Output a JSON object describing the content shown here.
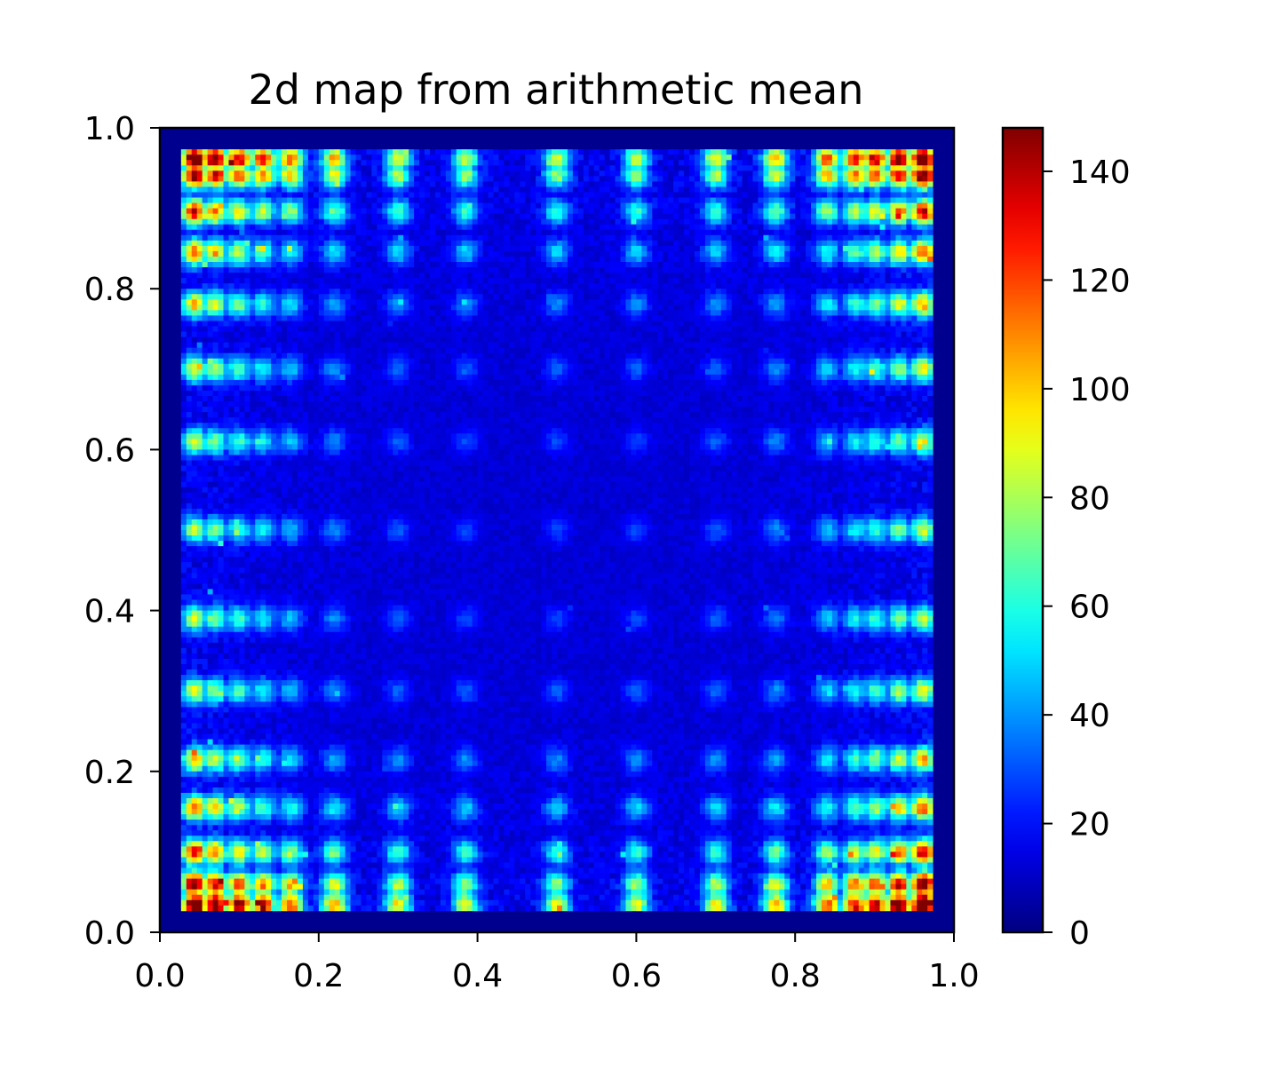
{
  "chart_data": {
    "type": "heatmap",
    "title": "2d map from arithmetic mean",
    "xlabel": "",
    "ylabel": "",
    "xlim": [
      0.0,
      1.0
    ],
    "ylim": [
      0.0,
      1.0
    ],
    "x_ticks": [
      "0.0",
      "0.2",
      "0.4",
      "0.6",
      "0.8",
      "1.0"
    ],
    "y_ticks": [
      "0.0",
      "0.2",
      "0.4",
      "0.6",
      "0.8",
      "1.0"
    ],
    "colormap": "jet",
    "colorbar": {
      "range": [
        0,
        148
      ],
      "ticks": [
        "0",
        "20",
        "40",
        "60",
        "80",
        "100",
        "120",
        "140"
      ]
    },
    "grid": false,
    "pattern": {
      "blob_centers_x": [
        0.045,
        0.07,
        0.1,
        0.13,
        0.165,
        0.22,
        0.3,
        0.385,
        0.5,
        0.6,
        0.7,
        0.775,
        0.84,
        0.875,
        0.9,
        0.93,
        0.96
      ],
      "blob_centers_y": [
        0.035,
        0.06,
        0.1,
        0.155,
        0.215,
        0.3,
        0.39,
        0.5,
        0.61,
        0.7,
        0.78,
        0.845,
        0.895,
        0.94,
        0.96
      ],
      "active_region": [
        0.025,
        0.975
      ],
      "background_value": 3,
      "peak_value": 148
    }
  }
}
